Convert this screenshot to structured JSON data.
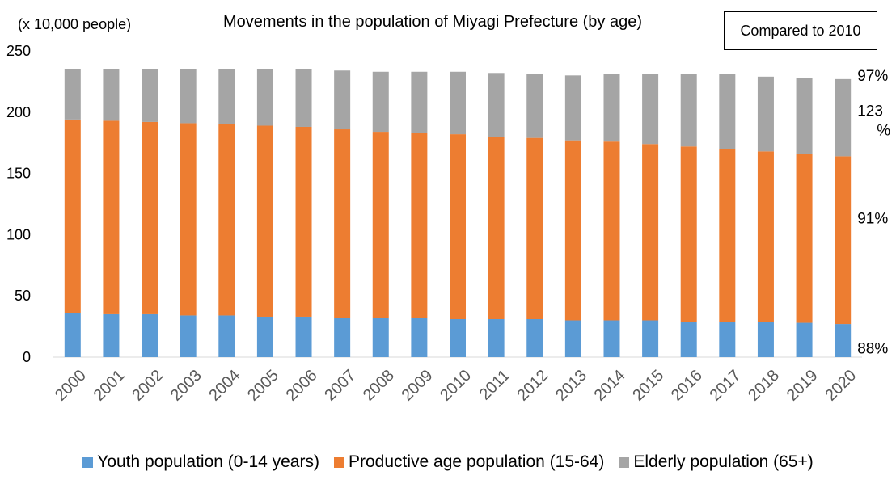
{
  "unit_label": "(x 10,000 people)",
  "compare_label": "Compared to 2010",
  "colors": {
    "youth": "#5b9bd5",
    "productive": "#ed7d31",
    "elderly": "#a5a5a5"
  },
  "chart_data": {
    "type": "bar",
    "stacked": true,
    "title": "Movements in the population of Miyagi Prefecture (by age)",
    "ylabel": "(x 10,000 people)",
    "ylim": [
      0,
      250
    ],
    "yticks": [
      0,
      50,
      100,
      150,
      200,
      250
    ],
    "grid": false,
    "legend_position": "bottom",
    "categories": [
      "2000",
      "2001",
      "2002",
      "2003",
      "2004",
      "2005",
      "2006",
      "2007",
      "2008",
      "2009",
      "2010",
      "2011",
      "2012",
      "2013",
      "2014",
      "2015",
      "2016",
      "2017",
      "2018",
      "2019",
      "2020"
    ],
    "series": [
      {
        "name": "Youth population (0-14 years)",
        "values": [
          36,
          35,
          35,
          34,
          34,
          33,
          33,
          32,
          32,
          32,
          31,
          31,
          31,
          30,
          30,
          30,
          29,
          29,
          29,
          28,
          27
        ]
      },
      {
        "name": "Productive age population (15-64)",
        "values": [
          158,
          158,
          157,
          157,
          156,
          156,
          155,
          154,
          152,
          151,
          151,
          149,
          148,
          147,
          146,
          144,
          143,
          141,
          139,
          138,
          137
        ]
      },
      {
        "name": "Elderly population (65+)",
        "values": [
          41,
          42,
          43,
          44,
          45,
          46,
          47,
          48,
          49,
          50,
          51,
          52,
          52,
          53,
          55,
          57,
          59,
          61,
          61,
          62,
          63
        ]
      }
    ],
    "annotations": [
      "88%",
      "91%",
      "123%",
      "97%"
    ]
  }
}
